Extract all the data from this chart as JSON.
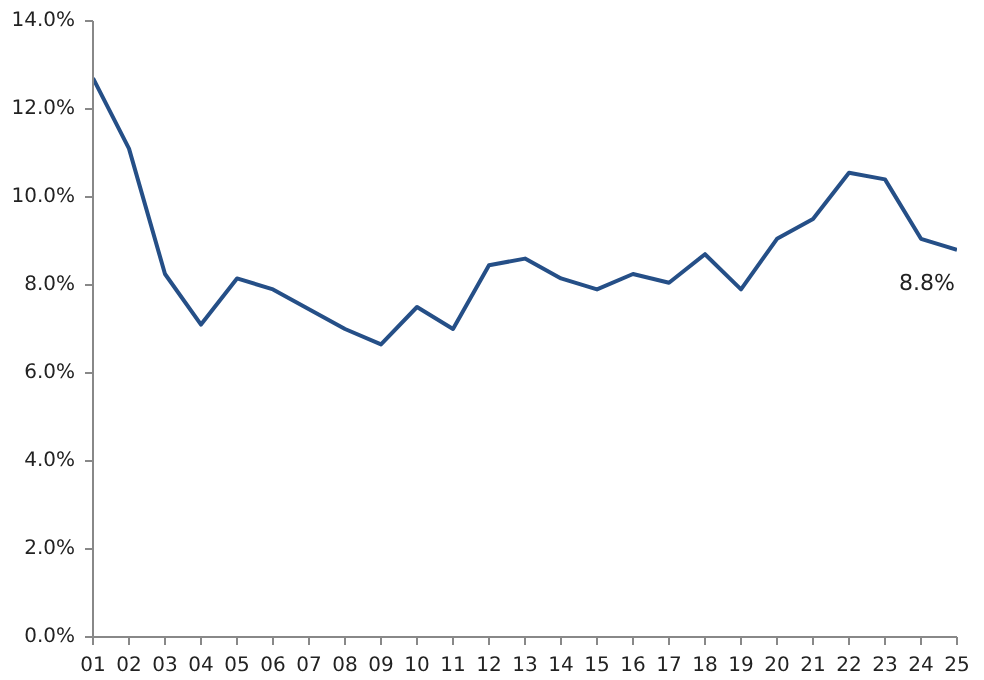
{
  "chart_data": {
    "type": "line",
    "categories": [
      "01",
      "02",
      "03",
      "04",
      "05",
      "06",
      "07",
      "08",
      "09",
      "10",
      "11",
      "12",
      "13",
      "14",
      "15",
      "16",
      "17",
      "18",
      "19",
      "20",
      "21",
      "22",
      "23",
      "24",
      "25"
    ],
    "series": [
      {
        "color": "#254f87",
        "values": [
          12.7,
          11.1,
          8.25,
          7.1,
          8.15,
          7.9,
          7.45,
          7.0,
          6.65,
          7.5,
          7.0,
          8.45,
          8.6,
          8.15,
          7.9,
          8.25,
          8.05,
          8.7,
          7.9,
          9.05,
          9.5,
          10.55,
          10.4,
          9.05,
          8.8
        ],
        "value_labels": [
          null,
          null,
          null,
          null,
          null,
          null,
          null,
          null,
          null,
          null,
          null,
          null,
          null,
          null,
          null,
          null,
          null,
          null,
          null,
          null,
          null,
          null,
          null,
          null,
          "8.8%"
        ]
      }
    ],
    "ylim": [
      0,
      14
    ],
    "yticks": [
      {
        "value": 0,
        "label": "0.0%"
      },
      {
        "value": 2,
        "label": "2.0%"
      },
      {
        "value": 4,
        "label": "4.0%"
      },
      {
        "value": 6,
        "label": "6.0%"
      },
      {
        "value": 8,
        "label": "8.0%"
      },
      {
        "value": 10,
        "label": "10.0%"
      },
      {
        "value": 12,
        "label": "12.0%"
      },
      {
        "value": 14,
        "label": "14.0%"
      }
    ],
    "grid": false
  }
}
